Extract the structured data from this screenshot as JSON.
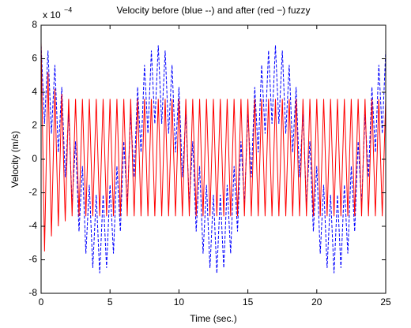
{
  "chart_data": {
    "type": "line",
    "title": "Velocity before (blue --) and after (red −) fuzzy",
    "xlabel": "Time (sec.)",
    "ylabel": "Velocity (m/s)",
    "exponent_label": {
      "base": "x 10",
      "exponent": "−4"
    },
    "xlim": [
      0,
      25
    ],
    "xticks": [
      0,
      5,
      10,
      15,
      20,
      25
    ],
    "ylim": [
      -8,
      8
    ],
    "yticks": [
      -8,
      -6,
      -4,
      -2,
      0,
      2,
      4,
      6,
      8
    ],
    "grid": false,
    "x": [
      0,
      0.25,
      0.5,
      0.75,
      1,
      1.25,
      1.5,
      1.75,
      2,
      2.25,
      2.5,
      2.75,
      3,
      3.25,
      3.5,
      3.75,
      4,
      4.25,
      4.5,
      4.75,
      5,
      5.25,
      5.5,
      5.75,
      6,
      6.25,
      6.5,
      6.75,
      7,
      7.25,
      7.5,
      7.75,
      8,
      8.25,
      8.5,
      8.75,
      9,
      9.25,
      9.5,
      9.75,
      10,
      10.25,
      10.5,
      10.75,
      11,
      11.25,
      11.5,
      11.75,
      12,
      12.25,
      12.5,
      12.75,
      13,
      13.25,
      13.5,
      13.75,
      14,
      14.25,
      14.5,
      14.75,
      15,
      15.25,
      15.5,
      15.75,
      16,
      16.25,
      16.5,
      16.75,
      17,
      17.25,
      17.5,
      17.75,
      18,
      18.25,
      18.5,
      18.75,
      19,
      19.25,
      19.5,
      19.75,
      20,
      20.25,
      20.5,
      20.75,
      21,
      21.25,
      21.5,
      21.75,
      22,
      22.25,
      22.5,
      22.75,
      23,
      23.25,
      23.5,
      23.75,
      24,
      24.25,
      24.5,
      24.75,
      25
    ],
    "series": [
      {
        "color": "#0000ff",
        "style": "dashed",
        "values": [
          6.8,
          2.12,
          6.49,
          1.53,
          5.63,
          0.41,
          4.31,
          -1.07,
          2.71,
          -2.71,
          1.07,
          -4.31,
          -0.41,
          -5.63,
          -1.53,
          -6.49,
          -2.12,
          -6.8,
          -2.12,
          -6.49,
          -1.53,
          -5.63,
          -0.41,
          -4.31,
          1.07,
          -2.71,
          2.71,
          -1.07,
          4.31,
          0.41,
          5.63,
          1.53,
          6.49,
          2.12,
          6.8,
          2.12,
          6.49,
          1.53,
          5.63,
          0.41,
          4.31,
          -1.07,
          2.71,
          -2.71,
          1.07,
          -4.31,
          -0.41,
          -5.63,
          -1.53,
          -6.49,
          -2.12,
          -6.8,
          -2.12,
          -6.49,
          -1.53,
          -5.63,
          -0.41,
          -4.31,
          1.07,
          -2.71,
          2.71,
          -1.07,
          4.31,
          0.41,
          5.63,
          1.53,
          6.49,
          2.12,
          6.8,
          2.12,
          6.49,
          1.53,
          5.63,
          0.41,
          4.31,
          -1.07,
          2.71,
          -2.71,
          1.07,
          -4.31,
          -0.41,
          -5.63,
          -1.53,
          -6.49,
          -2.12,
          -6.8,
          -2.12,
          -6.49,
          -1.53,
          -5.63,
          -0.41,
          -4.31,
          1.07,
          -2.71,
          2.71,
          -1.07,
          4.31,
          0.41,
          5.63,
          1.53,
          6.49
        ]
      },
      {
        "color": "#ff0000",
        "style": "solid",
        "values": [
          7,
          -5.5,
          5.2,
          -4.6,
          4.2,
          -4,
          3.9,
          -3.7,
          3.6,
          -3.4,
          3.6,
          -3.4,
          3.6,
          -3.4,
          3.6,
          -3.4,
          3.6,
          -3.4,
          3.6,
          -3.4,
          3.6,
          -3.4,
          3.6,
          -3.4,
          3.6,
          -3.4,
          3.6,
          -3.4,
          3.6,
          -3.4,
          3.6,
          -3.4,
          3.6,
          -3.4,
          3.6,
          -3.4,
          3.6,
          -3.4,
          3.6,
          -3.4,
          3.6,
          -3.4,
          3.6,
          -3.4,
          3.6,
          -3.4,
          3.6,
          -3.4,
          3.6,
          -3.4,
          3.6,
          -3.4,
          3.6,
          -3.4,
          3.6,
          -3.4,
          3.6,
          -3.4,
          3.6,
          -3.4,
          3.6,
          -3.4,
          3.6,
          -3.4,
          3.6,
          -3.4,
          3.6,
          -3.4,
          3.6,
          -3.4,
          3.6,
          -3.4,
          3.6,
          -3.4,
          3.6,
          -3.4,
          3.6,
          -3.4,
          3.6,
          -3.4,
          3.6,
          -3.4,
          3.6,
          -3.4,
          3.6,
          -3.4,
          3.6,
          -3.4,
          3.6,
          -3.4,
          3.6,
          -3.4,
          3.6,
          -3.4,
          3.6,
          -3.4,
          3.6,
          -3.4,
          3.6,
          -3.4,
          3.6
        ]
      }
    ]
  }
}
